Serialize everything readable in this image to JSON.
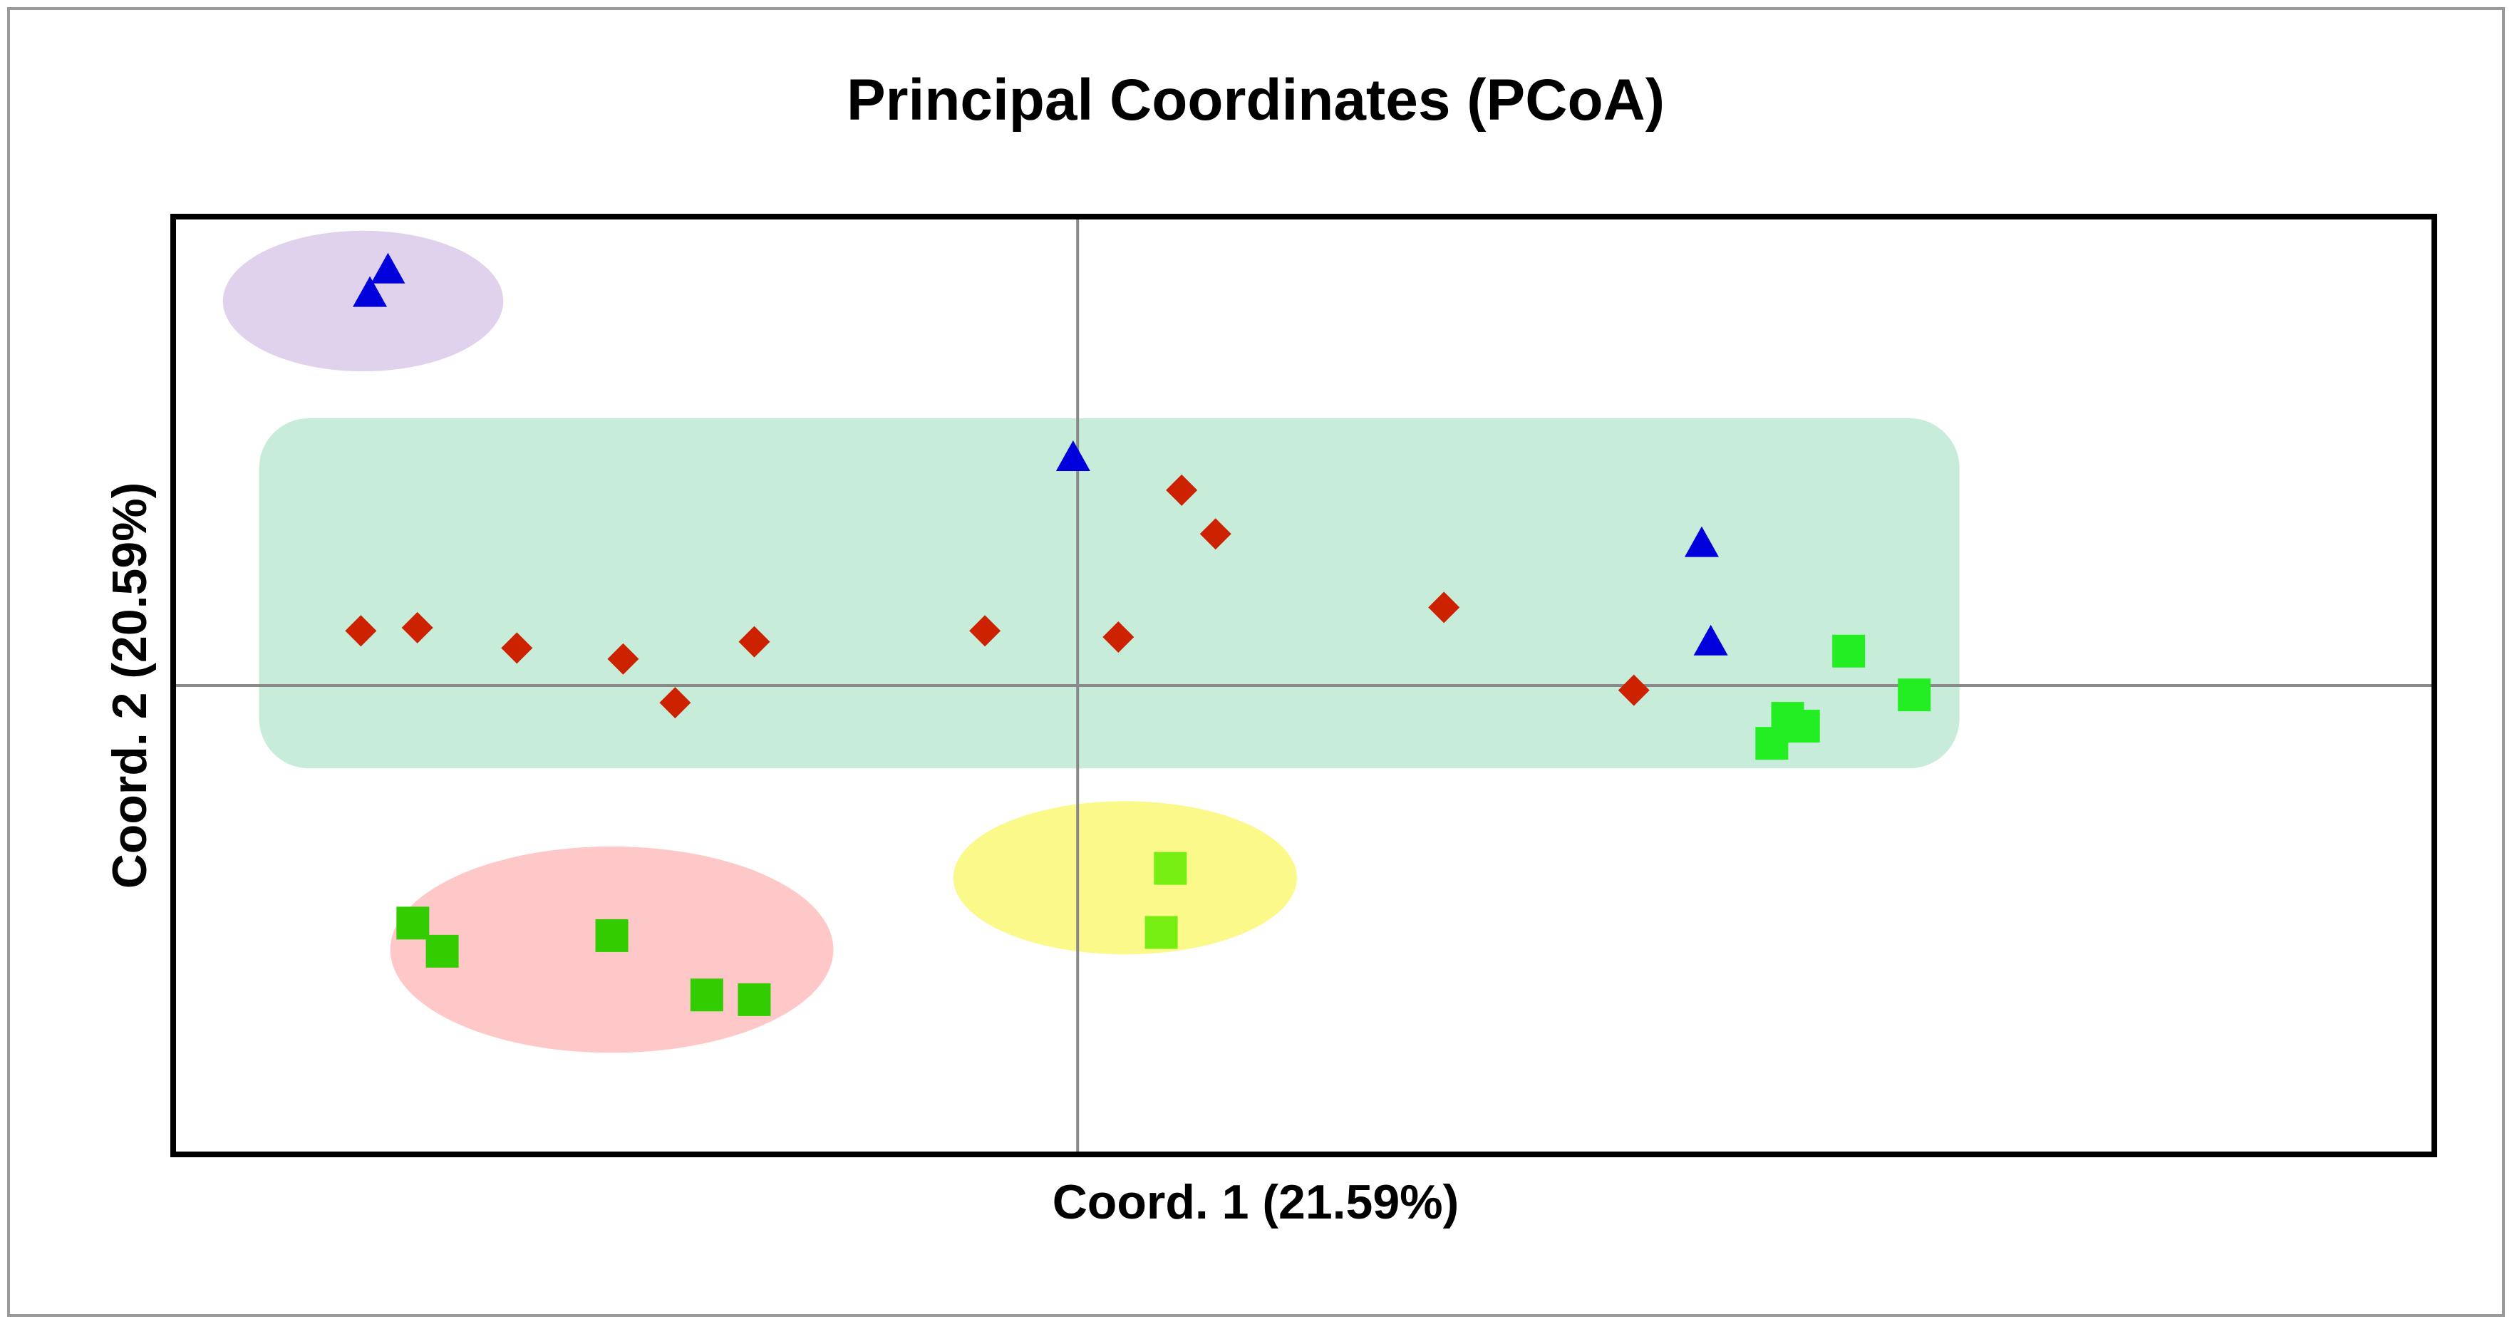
{
  "chart_data": {
    "type": "scatter",
    "title": "Principal Coordinates (PCoA)",
    "xlabel": "Coord. 1 (21.59%)",
    "ylabel": "Coord. 2 (20.59%)",
    "xlim": [
      -0.4,
      0.6
    ],
    "ylim": [
      -0.3,
      0.3
    ],
    "grid": false,
    "zero_lines": true,
    "series": [
      {
        "name": "Red diamonds",
        "marker": "diamond",
        "color": "#cc2200",
        "points": [
          [
            -0.317,
            0.035
          ],
          [
            -0.292,
            0.037
          ],
          [
            -0.248,
            0.024
          ],
          [
            -0.201,
            0.017
          ],
          [
            -0.178,
            -0.011
          ],
          [
            -0.143,
            0.028
          ],
          [
            -0.041,
            0.035
          ],
          [
            0.018,
            0.031
          ],
          [
            0.046,
            0.125
          ],
          [
            0.061,
            0.097
          ],
          [
            0.162,
            0.05
          ],
          [
            0.246,
            -0.003
          ]
        ]
      },
      {
        "name": "Blue triangles",
        "marker": "triangle",
        "color": "#0000dd",
        "points": [
          [
            -0.305,
            0.265
          ],
          [
            -0.313,
            0.25
          ],
          [
            -0.002,
            0.145
          ],
          [
            0.276,
            0.09
          ],
          [
            0.28,
            0.027
          ]
        ]
      },
      {
        "name": "Green squares",
        "marker": "square",
        "color": "#33cc00",
        "points": [
          [
            -0.294,
            -0.152
          ],
          [
            -0.281,
            -0.17
          ],
          [
            -0.206,
            -0.16
          ],
          [
            -0.164,
            -0.198
          ],
          [
            -0.143,
            -0.201
          ]
        ]
      },
      {
        "name": "Light green squares",
        "marker": "square",
        "color": "#77ee11",
        "points": [
          [
            0.041,
            -0.117
          ],
          [
            0.037,
            -0.158
          ]
        ]
      },
      {
        "name": "Bright green squares",
        "marker": "square",
        "color": "#22ee22",
        "points": [
          [
            0.341,
            0.022
          ],
          [
            0.37,
            -0.006
          ],
          [
            0.314,
            -0.021
          ],
          [
            0.321,
            -0.026
          ],
          [
            0.307,
            -0.037
          ]
        ]
      }
    ],
    "groupings": [
      {
        "shape": "ellipse",
        "color": "#e0d2ec",
        "center": [
          -0.316,
          0.246
        ],
        "radii": [
          0.062,
          0.045
        ]
      },
      {
        "shape": "rounded-rect",
        "color": "#c8ecda",
        "x_range": [
          -0.362,
          0.39
        ],
        "y_range": [
          -0.053,
          0.171
        ]
      },
      {
        "shape": "ellipse",
        "color": "#ffc8c8",
        "center": [
          -0.206,
          -0.169
        ],
        "radii": [
          0.098,
          0.066
        ]
      },
      {
        "shape": "ellipse",
        "color": "#fbf98a",
        "center": [
          0.021,
          -0.123
        ],
        "radii": [
          0.076,
          0.049
        ]
      }
    ]
  }
}
